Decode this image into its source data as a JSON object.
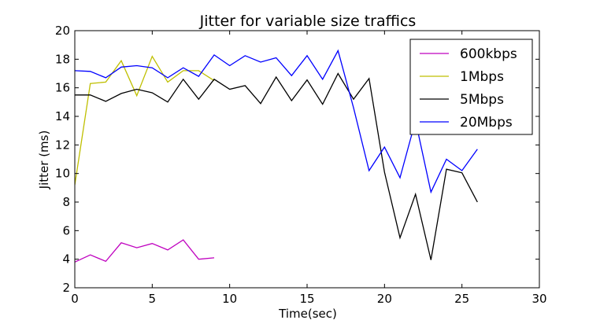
{
  "chart_data": {
    "type": "line",
    "title": "Jitter for variable size traffics",
    "xlabel": "Time(sec)",
    "ylabel": "Jitter (ms)",
    "xlim": [
      0,
      30
    ],
    "ylim": [
      2,
      20
    ],
    "xticks": [
      0,
      5,
      10,
      15,
      20,
      25,
      30
    ],
    "yticks": [
      2,
      4,
      6,
      8,
      10,
      12,
      14,
      16,
      18,
      20
    ],
    "grid": false,
    "legend_position": "top-right",
    "series": [
      {
        "name": "600kbps",
        "color": "#bf00bf",
        "x": [
          0,
          1,
          2,
          3,
          4,
          5,
          6,
          7,
          8,
          9
        ],
        "y": [
          3.8,
          4.3,
          3.85,
          5.15,
          4.8,
          5.1,
          4.65,
          5.35,
          4.0,
          4.1
        ]
      },
      {
        "name": "1Mbps",
        "color": "#bfbf00",
        "x": [
          0,
          1,
          2,
          3,
          4,
          5,
          6,
          7,
          8,
          9
        ],
        "y": [
          9.2,
          16.3,
          16.4,
          17.9,
          15.45,
          18.2,
          16.4,
          17.2,
          17.2,
          16.5
        ]
      },
      {
        "name": "5Mbps",
        "color": "#000000",
        "x": [
          0,
          1,
          2,
          3,
          4,
          5,
          6,
          7,
          8,
          9,
          10,
          11,
          12,
          13,
          14,
          15,
          16,
          17,
          18,
          19,
          20,
          21,
          22,
          23,
          24,
          25,
          26
        ],
        "y": [
          15.5,
          15.5,
          15.05,
          15.6,
          15.9,
          15.65,
          15.0,
          16.6,
          15.2,
          16.6,
          15.9,
          16.15,
          14.9,
          16.75,
          15.1,
          16.55,
          14.85,
          17.0,
          15.2,
          16.65,
          10.1,
          5.5,
          8.55,
          3.95,
          10.3,
          10.05,
          8.0
        ]
      },
      {
        "name": "20Mbps",
        "color": "#0000ff",
        "x": [
          0,
          1,
          2,
          3,
          4,
          5,
          6,
          7,
          8,
          9,
          10,
          11,
          12,
          13,
          14,
          15,
          16,
          17,
          18,
          19,
          20,
          21,
          22,
          23,
          24,
          25,
          26
        ],
        "y": [
          17.2,
          17.15,
          16.7,
          17.45,
          17.55,
          17.4,
          16.7,
          17.4,
          16.8,
          18.3,
          17.55,
          18.25,
          17.8,
          18.1,
          16.85,
          18.25,
          16.6,
          18.6,
          14.6,
          10.2,
          11.85,
          9.7,
          13.7,
          8.7,
          11.0,
          10.2,
          11.7
        ]
      }
    ]
  }
}
